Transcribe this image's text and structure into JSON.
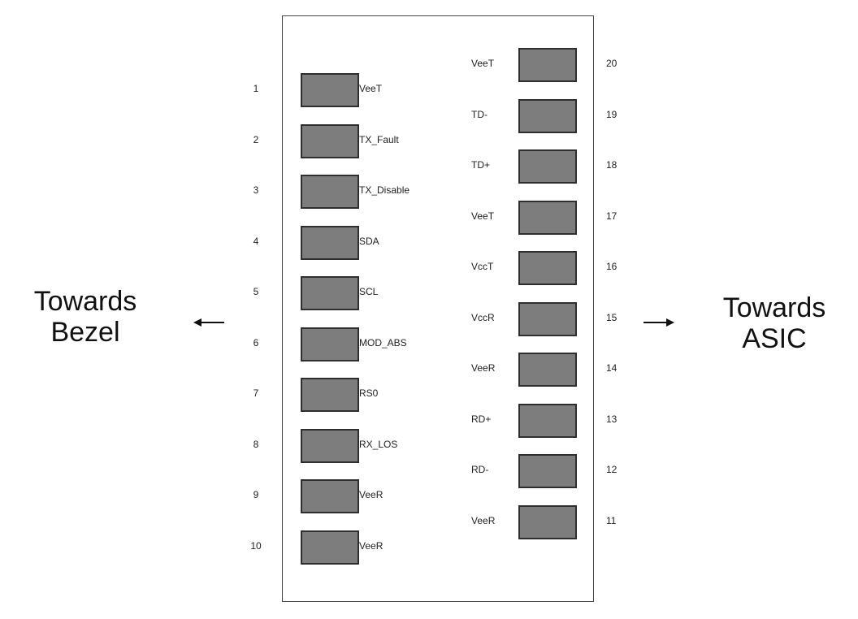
{
  "directions": {
    "left": [
      "Towards",
      "Bezel"
    ],
    "right": [
      "Towards",
      "ASIC"
    ]
  },
  "pins_left": [
    {
      "number": "1",
      "signal": "VeeT"
    },
    {
      "number": "2",
      "signal": "TX_Fault"
    },
    {
      "number": "3",
      "signal": "TX_Disable"
    },
    {
      "number": "4",
      "signal": "SDA"
    },
    {
      "number": "5",
      "signal": "SCL"
    },
    {
      "number": "6",
      "signal": "MOD_ABS"
    },
    {
      "number": "7",
      "signal": "RS0"
    },
    {
      "number": "8",
      "signal": "RX_LOS"
    },
    {
      "number": "9",
      "signal": "VeeR"
    },
    {
      "number": "10",
      "signal": "VeeR"
    }
  ],
  "pins_right": [
    {
      "number": "20",
      "signal": "VeeT"
    },
    {
      "number": "19",
      "signal": "TD-"
    },
    {
      "number": "18",
      "signal": "TD+"
    },
    {
      "number": "17",
      "signal": "VeeT"
    },
    {
      "number": "16",
      "signal": "VccT"
    },
    {
      "number": "15",
      "signal": "VccR"
    },
    {
      "number": "14",
      "signal": "VeeR"
    },
    {
      "number": "13",
      "signal": "RD+"
    },
    {
      "number": "12",
      "signal": "RD-"
    },
    {
      "number": "11",
      "signal": "VeeR"
    }
  ],
  "colors": {
    "pad_fill": "#7d7d7d",
    "pad_border": "#2e2e2e",
    "outline": "#444444"
  },
  "icons": {
    "left_arrow": "arrow-left-icon",
    "right_arrow": "arrow-right-icon"
  }
}
